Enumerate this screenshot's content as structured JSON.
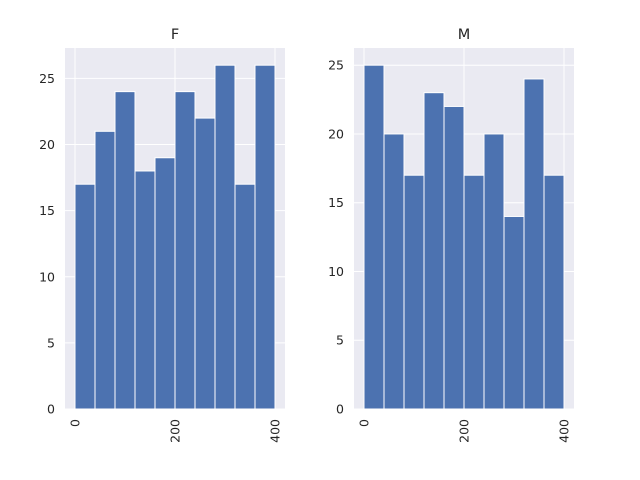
{
  "chart_data": [
    {
      "type": "bar",
      "title": "F",
      "bin_edges": [
        0,
        40,
        80,
        120,
        160,
        200,
        240,
        280,
        320,
        360,
        400
      ],
      "values": [
        17,
        21,
        24,
        18,
        19,
        24,
        22,
        26,
        17,
        26
      ],
      "xlim": [
        -20,
        420
      ],
      "ylim": [
        0,
        27.3
      ],
      "xticks": [
        0,
        200,
        400
      ],
      "yticks": [
        0,
        5,
        10,
        15,
        20,
        25
      ],
      "xticklabels": [
        "0",
        "200",
        "400"
      ],
      "yticklabels": [
        "0",
        "5",
        "10",
        "15",
        "20",
        "25"
      ],
      "xlabel": "",
      "ylabel": "",
      "xtick_rotation": 90,
      "grid": true,
      "color": "#4c72b0",
      "background": "#eaeaf2"
    },
    {
      "type": "bar",
      "title": "M",
      "bin_edges": [
        0,
        40,
        80,
        120,
        160,
        200,
        240,
        280,
        320,
        360,
        400
      ],
      "values": [
        25,
        20,
        17,
        23,
        22,
        17,
        20,
        14,
        24,
        17
      ],
      "xlim": [
        -20,
        420
      ],
      "ylim": [
        0,
        26.25
      ],
      "xticks": [
        0,
        200,
        400
      ],
      "yticks": [
        0,
        5,
        10,
        15,
        20,
        25
      ],
      "xticklabels": [
        "0",
        "200",
        "400"
      ],
      "yticklabels": [
        "0",
        "5",
        "10",
        "15",
        "20",
        "25"
      ],
      "xlabel": "",
      "ylabel": "",
      "xtick_rotation": 90,
      "grid": true,
      "color": "#4c72b0",
      "background": "#eaeaf2"
    }
  ]
}
